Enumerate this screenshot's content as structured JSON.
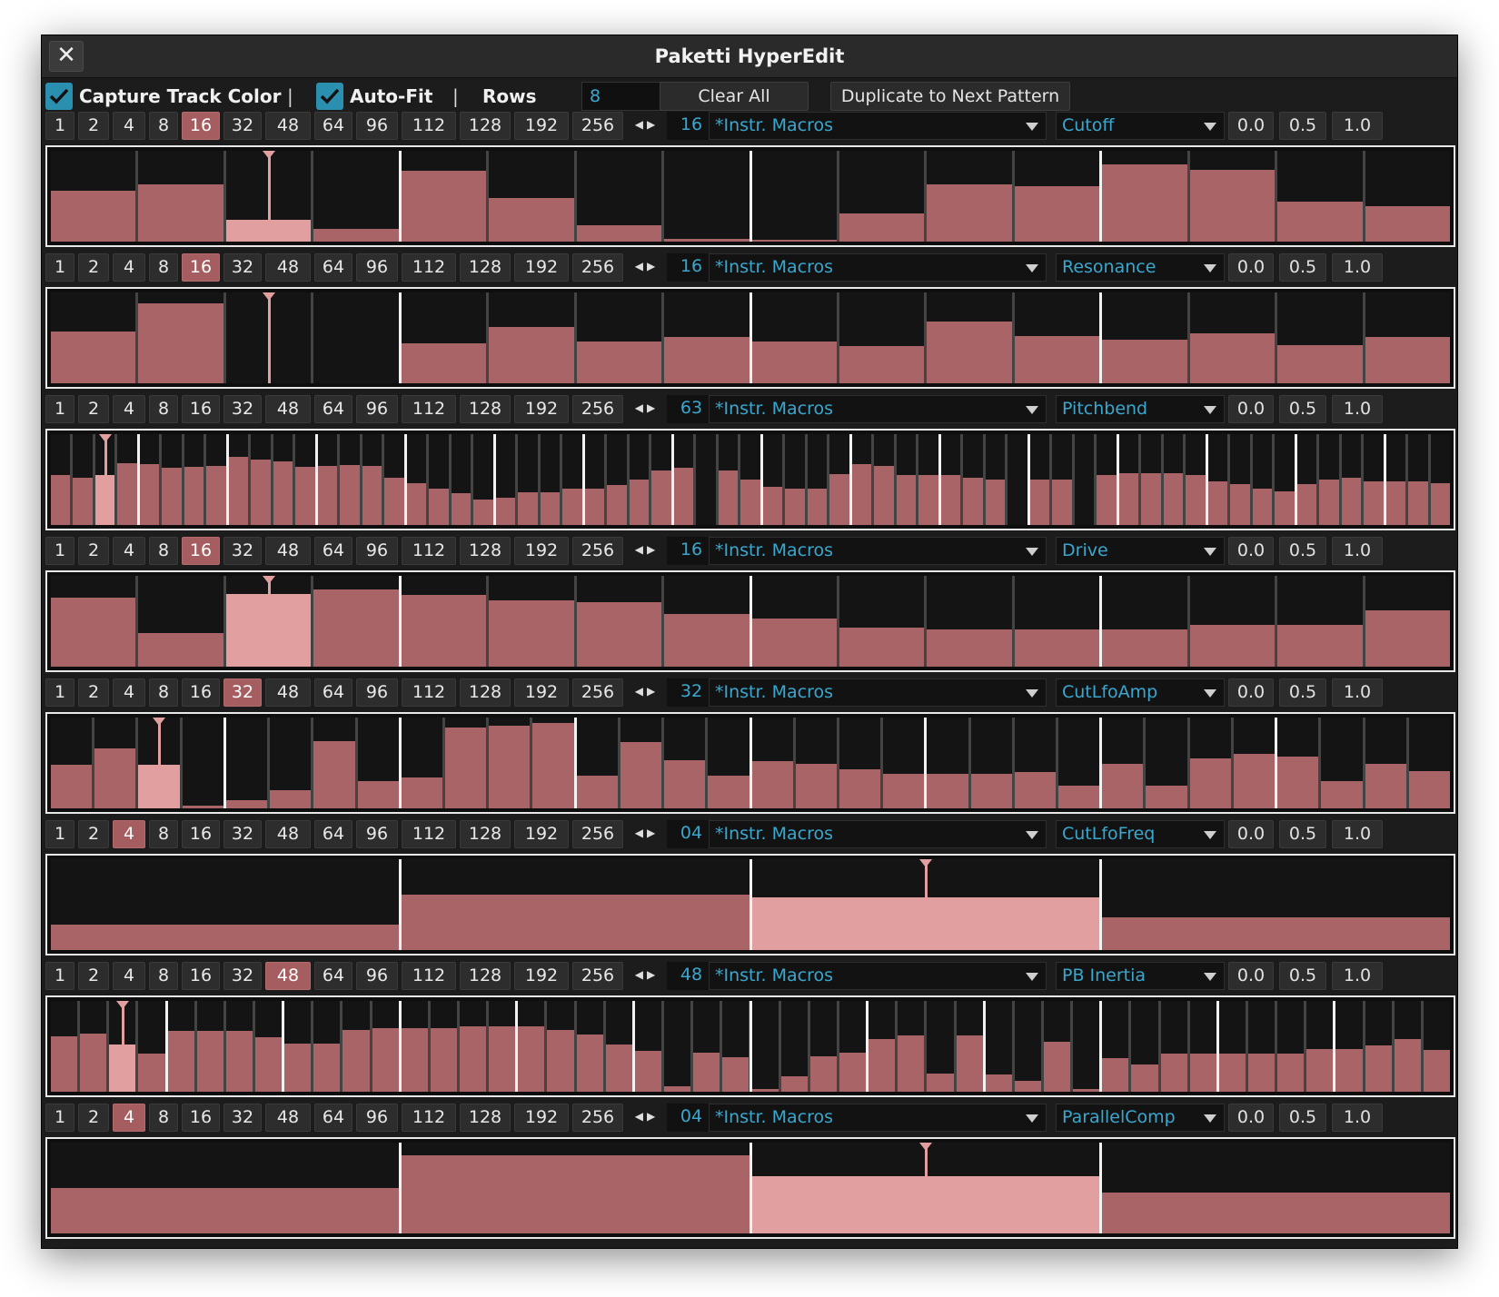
{
  "window": {
    "title": "Paketti HyperEdit"
  },
  "toolbar": {
    "capture_label": "Capture Track Color",
    "autofit_label": "Auto-Fit",
    "sep": "|",
    "rows_label": "Rows",
    "rows_value": "8",
    "clear_label": "Clear All",
    "duplicate_label": "Duplicate to Next Pattern"
  },
  "step_options": [
    "1",
    "2",
    "4",
    "8",
    "16",
    "32",
    "48",
    "64",
    "96",
    "112",
    "128",
    "192",
    "256"
  ],
  "value_buttons": [
    "0.0",
    "0.5",
    "1.0"
  ],
  "colors": {
    "fill": "#a86466",
    "selected_fill": "#e29fa0",
    "accent": "#3aa7cf",
    "selected_button": "#a65d60"
  },
  "strips": [
    {
      "selected_step": "16",
      "count": "16",
      "device": "*Instr. Macros",
      "param": "Cutoff",
      "playhead": 2,
      "values": [
        0.56,
        0.63,
        0.24,
        0.14,
        0.78,
        0.48,
        0.18,
        0.03,
        0.02,
        0.31,
        0.63,
        0.61,
        0.85,
        0.79,
        0.44,
        0.39
      ]
    },
    {
      "selected_step": "16",
      "count": "16",
      "device": "*Instr. Macros",
      "param": "Resonance",
      "playhead": 2,
      "values": [
        0.57,
        0.88,
        0.0,
        0.0,
        0.44,
        0.62,
        0.46,
        0.51,
        0.46,
        0.41,
        0.68,
        0.52,
        0.48,
        0.55,
        0.42,
        0.51
      ]
    },
    {
      "selected_step": "",
      "count": "63",
      "device": "*Instr. Macros",
      "param": "Pitchbend",
      "playhead": 2,
      "values": [
        0.55,
        0.52,
        0.55,
        0.68,
        0.67,
        0.63,
        0.64,
        0.65,
        0.75,
        0.72,
        0.7,
        0.64,
        0.65,
        0.66,
        0.65,
        0.52,
        0.46,
        0.4,
        0.35,
        0.28,
        0.3,
        0.36,
        0.36,
        0.4,
        0.4,
        0.44,
        0.5,
        0.6,
        0.63,
        0.0,
        0.6,
        0.5,
        0.42,
        0.4,
        0.4,
        0.56,
        0.67,
        0.65,
        0.55,
        0.55,
        0.55,
        0.52,
        0.5,
        0.0,
        0.5,
        0.5,
        0.0,
        0.55,
        0.57,
        0.57,
        0.57,
        0.55,
        0.48,
        0.45,
        0.4,
        0.37,
        0.45,
        0.5,
        0.52,
        0.48,
        0.48,
        0.48,
        0.46
      ]
    },
    {
      "selected_step": "16",
      "count": "16",
      "device": "*Instr. Macros",
      "param": "Drive",
      "playhead": 2,
      "values": [
        0.76,
        0.37,
        0.8,
        0.85,
        0.79,
        0.73,
        0.71,
        0.58,
        0.53,
        0.43,
        0.41,
        0.41,
        0.41,
        0.46,
        0.46,
        0.62
      ]
    },
    {
      "selected_step": "32",
      "count": "32",
      "device": "*Instr. Macros",
      "param": "CutLfoAmp",
      "playhead": 2,
      "values": [
        0.48,
        0.66,
        0.48,
        0.03,
        0.09,
        0.2,
        0.74,
        0.3,
        0.34,
        0.89,
        0.91,
        0.94,
        0.36,
        0.73,
        0.53,
        0.36,
        0.52,
        0.49,
        0.43,
        0.38,
        0.38,
        0.38,
        0.4,
        0.25,
        0.49,
        0.25,
        0.55,
        0.6,
        0.57,
        0.3,
        0.49,
        0.41
      ]
    },
    {
      "selected_step": "4",
      "count": "04",
      "device": "*Instr. Macros",
      "param": "CutLfoFreq",
      "playhead": 2,
      "values": [
        0.28,
        0.61,
        0.58,
        0.36
      ]
    },
    {
      "selected_step": "48",
      "count": "48",
      "device": "*Instr. Macros",
      "param": "PB Inertia",
      "playhead": 2,
      "values": [
        0.61,
        0.64,
        0.52,
        0.42,
        0.67,
        0.67,
        0.67,
        0.6,
        0.53,
        0.53,
        0.68,
        0.7,
        0.7,
        0.7,
        0.72,
        0.72,
        0.72,
        0.68,
        0.63,
        0.52,
        0.45,
        0.06,
        0.43,
        0.38,
        0.03,
        0.17,
        0.39,
        0.43,
        0.58,
        0.62,
        0.2,
        0.62,
        0.19,
        0.12,
        0.55,
        0.03,
        0.37,
        0.3,
        0.42,
        0.42,
        0.42,
        0.42,
        0.42,
        0.47,
        0.47,
        0.51,
        0.58,
        0.46
      ]
    },
    {
      "selected_step": "4",
      "count": "04",
      "device": "*Instr. Macros",
      "param": "ParallelComp",
      "playhead": 2,
      "values": [
        0.5,
        0.86,
        0.63,
        0.45
      ]
    }
  ]
}
